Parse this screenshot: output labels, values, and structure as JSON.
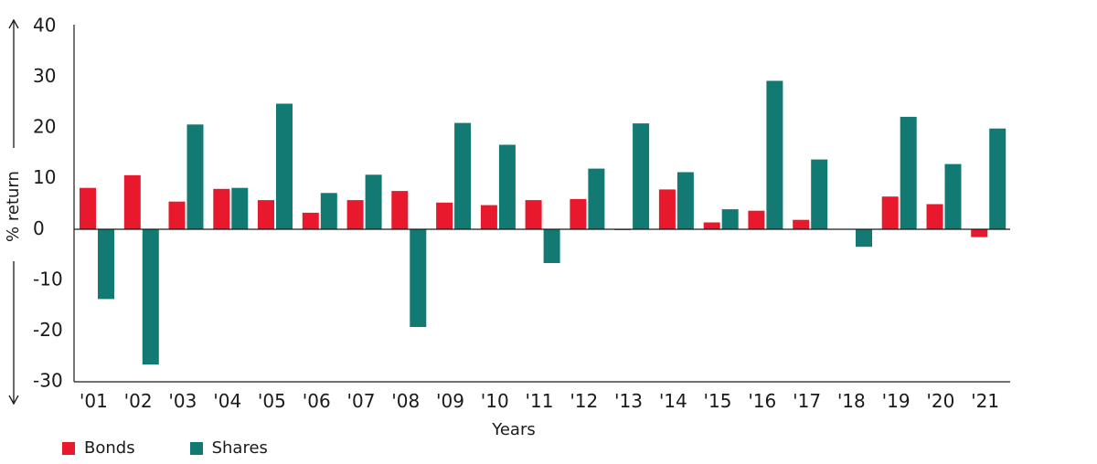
{
  "chart_data": {
    "type": "bar",
    "title": "",
    "xlabel": "Years",
    "ylabel": "% return",
    "ylim": [
      -30,
      40
    ],
    "yticks": [
      40,
      30,
      20,
      10,
      0,
      -10,
      -20,
      -30
    ],
    "grid": false,
    "legend_position": "bottom-left",
    "categories": [
      "'01",
      "'02",
      "'03",
      "'04",
      "'05",
      "'06",
      "'07",
      "'08",
      "'09",
      "'10",
      "'11",
      "'12",
      "'13",
      "'14",
      "'15",
      "'16",
      "'17",
      "'18",
      "'19",
      "'20",
      "'21"
    ],
    "series": [
      {
        "name": "Bonds",
        "color": "#e8192c",
        "values": [
          8.2,
          10.7,
          5.5,
          8.0,
          5.8,
          3.3,
          5.8,
          7.6,
          5.3,
          4.8,
          5.8,
          6.0,
          0,
          7.9,
          1.4,
          3.7,
          1.9,
          0.1,
          6.5,
          5.0,
          -1.5
        ]
      },
      {
        "name": "Shares",
        "color": "#127a72",
        "values": [
          -13.7,
          -26.6,
          20.7,
          8.2,
          24.8,
          7.2,
          10.8,
          -19.2,
          21.0,
          16.7,
          -6.6,
          12.0,
          20.9,
          11.3,
          4.0,
          29.3,
          13.8,
          -3.4,
          22.2,
          12.9,
          19.9
        ]
      }
    ]
  }
}
